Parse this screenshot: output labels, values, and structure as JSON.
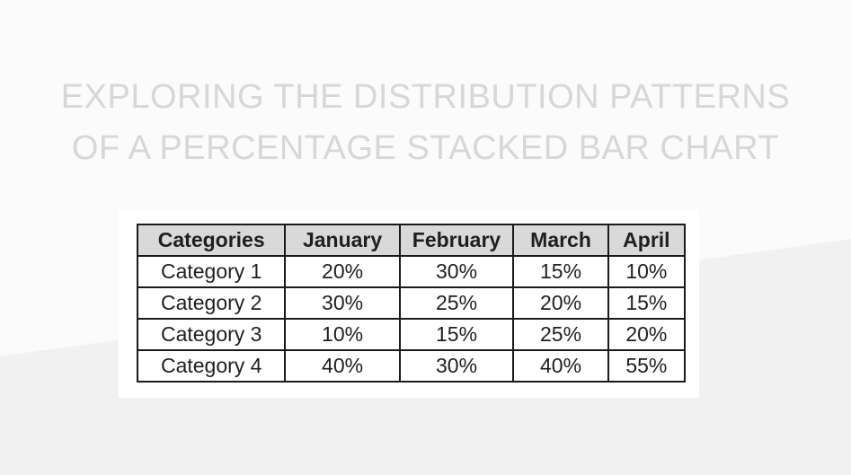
{
  "title": {
    "line1": "EXPLORING THE DISTRIBUTION PATTERNS",
    "line2": "OF A PERCENTAGE STACKED BAR CHART"
  },
  "table": {
    "headers": [
      "Categories",
      "January",
      "February",
      "March",
      "April"
    ],
    "rows": [
      [
        "Category 1",
        "20%",
        "30%",
        "15%",
        "10%"
      ],
      [
        "Category 2",
        "30%",
        "25%",
        "20%",
        "15%"
      ],
      [
        "Category 3",
        "10%",
        "15%",
        "25%",
        "20%"
      ],
      [
        "Category 4",
        "40%",
        "30%",
        "40%",
        "55%"
      ]
    ]
  },
  "chart_data": {
    "type": "table",
    "title": "EXPLORING THE DISTRIBUTION PATTERNS OF A PERCENTAGE STACKED BAR CHART",
    "columns": [
      "Categories",
      "January",
      "February",
      "March",
      "April"
    ],
    "categories": [
      "Category 1",
      "Category 2",
      "Category 3",
      "Category 4"
    ],
    "series": [
      {
        "name": "January",
        "values": [
          20,
          30,
          10,
          40
        ]
      },
      {
        "name": "February",
        "values": [
          30,
          25,
          15,
          30
        ]
      },
      {
        "name": "March",
        "values": [
          15,
          20,
          25,
          40
        ]
      },
      {
        "name": "April",
        "values": [
          10,
          15,
          20,
          55
        ]
      }
    ],
    "value_unit": "%"
  },
  "colors": {
    "background_upper": "#fbfbfb",
    "background_lower": "#f1f1f2",
    "title_text": "#d7d7d7",
    "card_background": "#ffffff",
    "header_background": "#d9d9d9",
    "table_border": "#1a1a1a",
    "table_text": "#1f1f1f"
  }
}
